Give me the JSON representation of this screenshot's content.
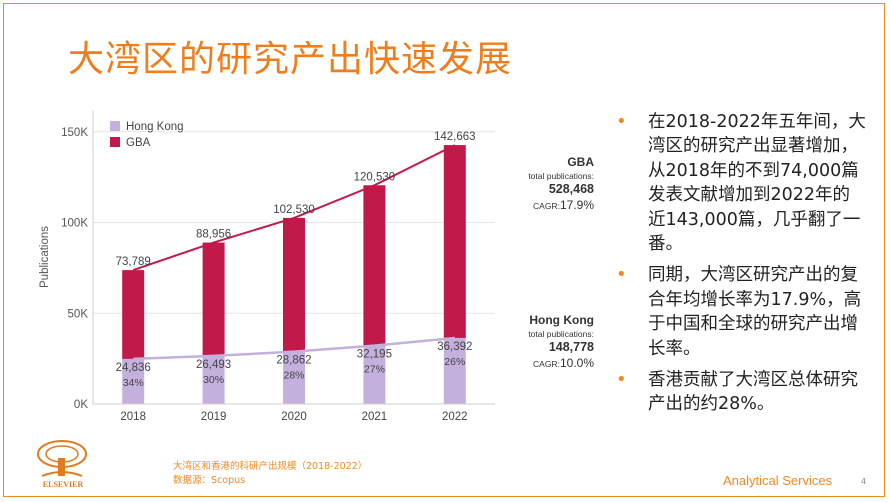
{
  "slide": {
    "title": "大湾区的研究产出快速发展",
    "page_number": "4",
    "brand": "Analytical Services",
    "source_line1": "大湾区和香港的科研产出规模（2018-2022）",
    "source_line2": "数据源：Scopus",
    "logo_text": "ELSEVIER",
    "bullet_icon": "bullet-dot",
    "accent_color": "#f08a24"
  },
  "stats": {
    "gba": {
      "name": "GBA",
      "label": "total publications:",
      "total": "528,468",
      "cagr_label": "CAGR:",
      "cagr": "17.9%"
    },
    "hk": {
      "name": "Hong Kong",
      "label": "total publications:",
      "total": "148,778",
      "cagr_label": "CAGR:",
      "cagr": "10.0%"
    }
  },
  "bullets": [
    "在2018-2022年五年间，大湾区的研究产出显著增加，从2018年的不到74,000篇发表文献增加到2022年的近143,000篇，几乎翻了一番。",
    "同期，大湾区研究产出的复合年均增长率为17.9%，高于中国和全球的研究产出增长率。",
    "香港贡献了大湾区总体研究产出的约28%。"
  ],
  "chart_data": {
    "type": "bar",
    "categories": [
      "2018",
      "2019",
      "2020",
      "2021",
      "2022"
    ],
    "ylabel": "Publications",
    "ylim": [
      0,
      162000
    ],
    "yticks": [
      0,
      50000,
      100000,
      150000
    ],
    "ytick_labels": [
      "0K",
      "50K",
      "100K",
      "150K"
    ],
    "legend_position": "top-left",
    "series": [
      {
        "name": "Hong Kong",
        "color": "#c4b0dc",
        "values": [
          24836,
          26493,
          28862,
          32195,
          36392
        ],
        "labels": [
          "24,836",
          "26,493",
          "28,862",
          "32,195",
          "36,392"
        ],
        "share_labels": [
          "34%",
          "30%",
          "28%",
          "27%",
          "26%"
        ]
      },
      {
        "name": "GBA",
        "color": "#c0194a",
        "values": [
          73789,
          88956,
          102530,
          120530,
          142663
        ],
        "labels": [
          "73,789",
          "88,956",
          "102,530",
          "120,530",
          "142,663"
        ]
      }
    ],
    "trend_colors": {
      "gba": "#c0194a",
      "hk": "#c4b0dc"
    }
  }
}
